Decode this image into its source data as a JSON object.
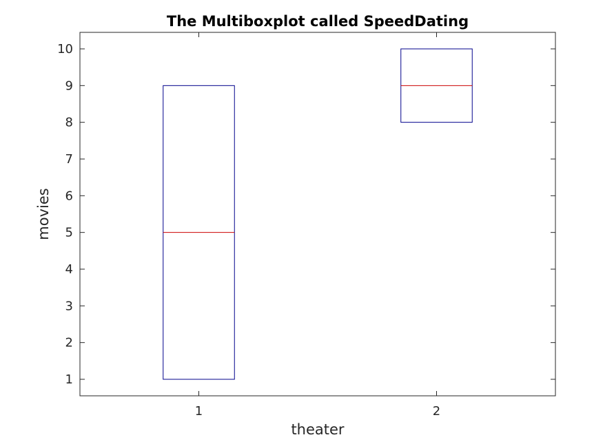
{
  "chart_data": {
    "type": "box",
    "title": "The Multiboxplot called SpeedDating",
    "xlabel": "theater",
    "ylabel": "movies",
    "categories": [
      "1",
      "2"
    ],
    "boxes": [
      {
        "category": "1",
        "q1": 1,
        "median": 5,
        "q3": 9
      },
      {
        "category": "2",
        "q1": 8,
        "median": 9,
        "q3": 10
      }
    ],
    "xlim": [
      0.5,
      2.5
    ],
    "ylim": [
      0.55,
      10.45
    ],
    "yticks": [
      1,
      2,
      3,
      4,
      5,
      6,
      7,
      8,
      9,
      10
    ],
    "grid": false,
    "colors": {
      "box": "#00008b",
      "median": "#cc0000",
      "axes": "#262626"
    }
  }
}
